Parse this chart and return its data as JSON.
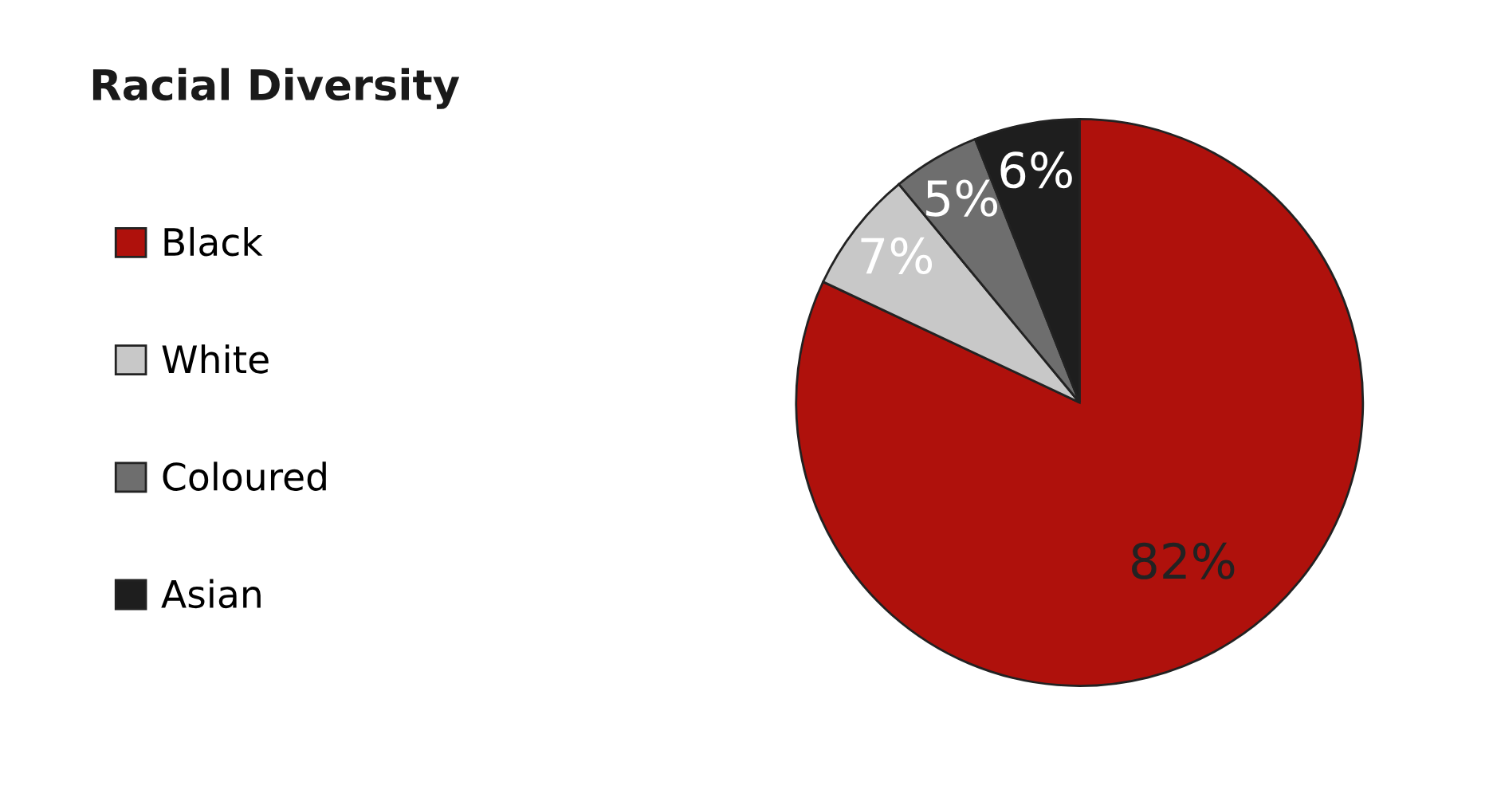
{
  "chart_data": {
    "type": "pie",
    "title": "Racial Diversity",
    "categories": [
      "Black",
      "White",
      "Coloured",
      "Asian"
    ],
    "values": [
      82,
      7,
      5,
      6
    ],
    "colors": [
      "#af110c",
      "#c8c8c8",
      "#6e6e6e",
      "#1e1e1e"
    ],
    "value_labels": [
      "82%",
      "7%",
      "5%",
      "6%"
    ],
    "legend": "left"
  }
}
